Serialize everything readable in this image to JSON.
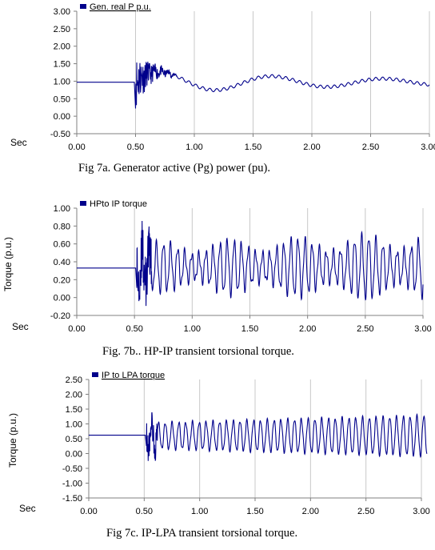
{
  "chart_data": [
    {
      "type": "line",
      "series": [
        {
          "name": "Gen. real P p.u.",
          "color": "#00008B"
        }
      ],
      "xlabel": "Sec",
      "ylabel": "",
      "xlim": [
        0,
        3.0
      ],
      "ylim": [
        -0.5,
        3.0
      ],
      "xticks": [
        "0.00",
        "0.50",
        "1.00",
        "1.50",
        "2.00",
        "2.50",
        "3.00"
      ],
      "yticks": [
        "3.00",
        "2.50",
        "2.00",
        "1.50",
        "1.00",
        "0.50",
        "0.00",
        "-0.50"
      ],
      "caption": "Fig 7a. Generator active (Pg) power (pu).",
      "grid": "vertical"
    },
    {
      "type": "line",
      "series": [
        {
          "name": "HPto IP torque",
          "color": "#00008B"
        }
      ],
      "xlabel": "Sec",
      "ylabel": "Torque (p.u.)",
      "xlim": [
        0,
        3.0
      ],
      "ylim": [
        -0.2,
        1.0
      ],
      "xticks": [
        "0.00",
        "0.50",
        "1.00",
        "1.50",
        "2.00",
        "2.50",
        "3.00"
      ],
      "yticks": [
        "1.00",
        "0.80",
        "0.60",
        "0.40",
        "0.20",
        "0.00",
        "-0.20"
      ],
      "caption": "Fig. 7b.. HP-IP transient torsional torque.",
      "grid": "vertical"
    },
    {
      "type": "line",
      "series": [
        {
          "name": "IP to LPA torque",
          "color": "#00008B"
        }
      ],
      "xlabel": "Sec",
      "ylabel": "Torque (p.u.)",
      "xlim": [
        0,
        3.0
      ],
      "ylim": [
        -1.5,
        2.5
      ],
      "xticks": [
        "0.00",
        "0.50",
        "1.00",
        "1.50",
        "2.00",
        "2.50",
        "3.00"
      ],
      "yticks": [
        "2.50",
        "2.00",
        "1.50",
        "1.00",
        "0.50",
        "0.00",
        "-0.50",
        "-1.00",
        "-1.50"
      ],
      "caption": "Fig  7c. IP-LPA transient torsional torque.",
      "grid": "vertical"
    }
  ]
}
